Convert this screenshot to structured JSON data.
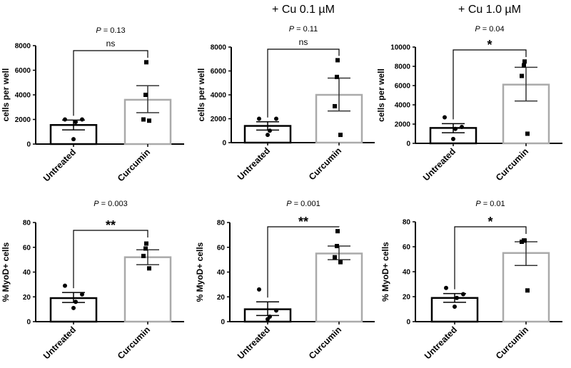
{
  "chart_data": [
    {
      "type": "bar",
      "title": "",
      "p_value": "0.13",
      "significance": "ns",
      "ylabel": "cells per well",
      "ylim": [
        0,
        8000
      ],
      "yticks": [
        0,
        2000,
        4000,
        6000,
        8000
      ],
      "categories": [
        "Untreated",
        "Curcumin"
      ],
      "values": [
        1550,
        3600
      ],
      "sem_low": [
        1150,
        2550
      ],
      "sem_high": [
        1950,
        4750
      ],
      "points": [
        [
          2000,
          2000,
          1800,
          400
        ],
        [
          6650,
          4000,
          2000,
          1900
        ]
      ]
    },
    {
      "type": "bar",
      "title": "+ Cu 0.1 µM",
      "p_value": "0.11",
      "significance": "ns",
      "ylabel": "cells per well",
      "ylim": [
        0,
        8000
      ],
      "yticks": [
        0,
        2000,
        4000,
        6000,
        8000
      ],
      "categories": [
        "Untreated",
        "Curcumin"
      ],
      "values": [
        1400,
        4000
      ],
      "sem_low": [
        1050,
        2650
      ],
      "sem_high": [
        1750,
        5400
      ],
      "points": [
        [
          2000,
          2000,
          1000,
          650
        ],
        [
          6900,
          5500,
          3050,
          650
        ]
      ]
    },
    {
      "type": "bar",
      "title": "+ Cu 1.0 µM",
      "p_value": "0.04",
      "significance": "*",
      "ylabel": "cells per well",
      "ylim": [
        0,
        10000
      ],
      "yticks": [
        0,
        2000,
        4000,
        6000,
        8000,
        10000
      ],
      "categories": [
        "Untreated",
        "Curcumin"
      ],
      "values": [
        1600,
        6100
      ],
      "sem_low": [
        1100,
        4400
      ],
      "sem_high": [
        2050,
        7900
      ],
      "points": [
        [
          2700,
          1700,
          1500,
          450
        ],
        [
          8500,
          8100,
          7000,
          1000
        ]
      ]
    },
    {
      "type": "bar",
      "title": "",
      "p_value": "0.003",
      "significance": "**",
      "ylabel": "% MyoD+ cells",
      "ylim": [
        0,
        80
      ],
      "yticks": [
        0,
        20,
        40,
        60,
        80
      ],
      "categories": [
        "Untreated",
        "Curcumin"
      ],
      "values": [
        19,
        52
      ],
      "sem_low": [
        15.5,
        46
      ],
      "sem_high": [
        23.5,
        58
      ],
      "points": [
        [
          29,
          22,
          16,
          11
        ],
        [
          63,
          59,
          53,
          43
        ]
      ]
    },
    {
      "type": "bar",
      "title": "",
      "p_value": "0.001",
      "significance": "**",
      "ylabel": "% MyoD+ cells",
      "ylim": [
        0,
        80
      ],
      "yticks": [
        0,
        20,
        40,
        60,
        80
      ],
      "categories": [
        "Untreated",
        "Curcumin"
      ],
      "values": [
        10,
        55
      ],
      "sem_low": [
        5,
        50
      ],
      "sem_high": [
        16,
        61
      ],
      "points": [
        [
          26,
          9,
          4,
          2
        ],
        [
          73,
          61,
          52,
          48
        ]
      ]
    },
    {
      "type": "bar",
      "title": "",
      "p_value": "0.01",
      "significance": "*",
      "ylabel": "% MyoD+ cells",
      "ylim": [
        0,
        80
      ],
      "yticks": [
        0,
        20,
        40,
        60,
        80
      ],
      "categories": [
        "Untreated",
        "Curcumin"
      ],
      "values": [
        19,
        55
      ],
      "sem_low": [
        15.5,
        45
      ],
      "sem_high": [
        22.5,
        64
      ],
      "points": [
        [
          27,
          22,
          19,
          12
        ],
        [
          65,
          65,
          64,
          25
        ]
      ]
    }
  ],
  "p_prefix": "P",
  "colors": {
    "untreated": "#000000",
    "curcumin": "#aaaaaa",
    "curcumin_err": "#333333"
  }
}
